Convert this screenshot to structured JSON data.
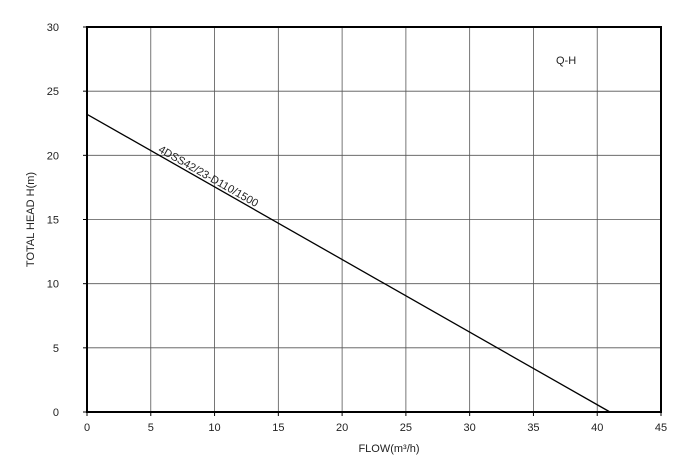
{
  "chart_data": {
    "type": "line",
    "title": "",
    "corner_label": "Q-H",
    "xlabel": "FLOW(m³/h)",
    "ylabel": "TOTAL HEAD H(m)",
    "xlim": [
      0,
      45
    ],
    "ylim": [
      0,
      30
    ],
    "xticks": [
      0,
      5,
      10,
      15,
      20,
      25,
      30,
      35,
      40,
      45
    ],
    "yticks": [
      0,
      5,
      10,
      15,
      20,
      25,
      30
    ],
    "grid": true,
    "series": [
      {
        "name": "4DSS42/23-D110/1500",
        "x": [
          0,
          41.0
        ],
        "y": [
          23.2,
          0
        ]
      }
    ],
    "colors": {
      "line": "#000000",
      "grid": "#555555",
      "frame": "#000000"
    }
  }
}
